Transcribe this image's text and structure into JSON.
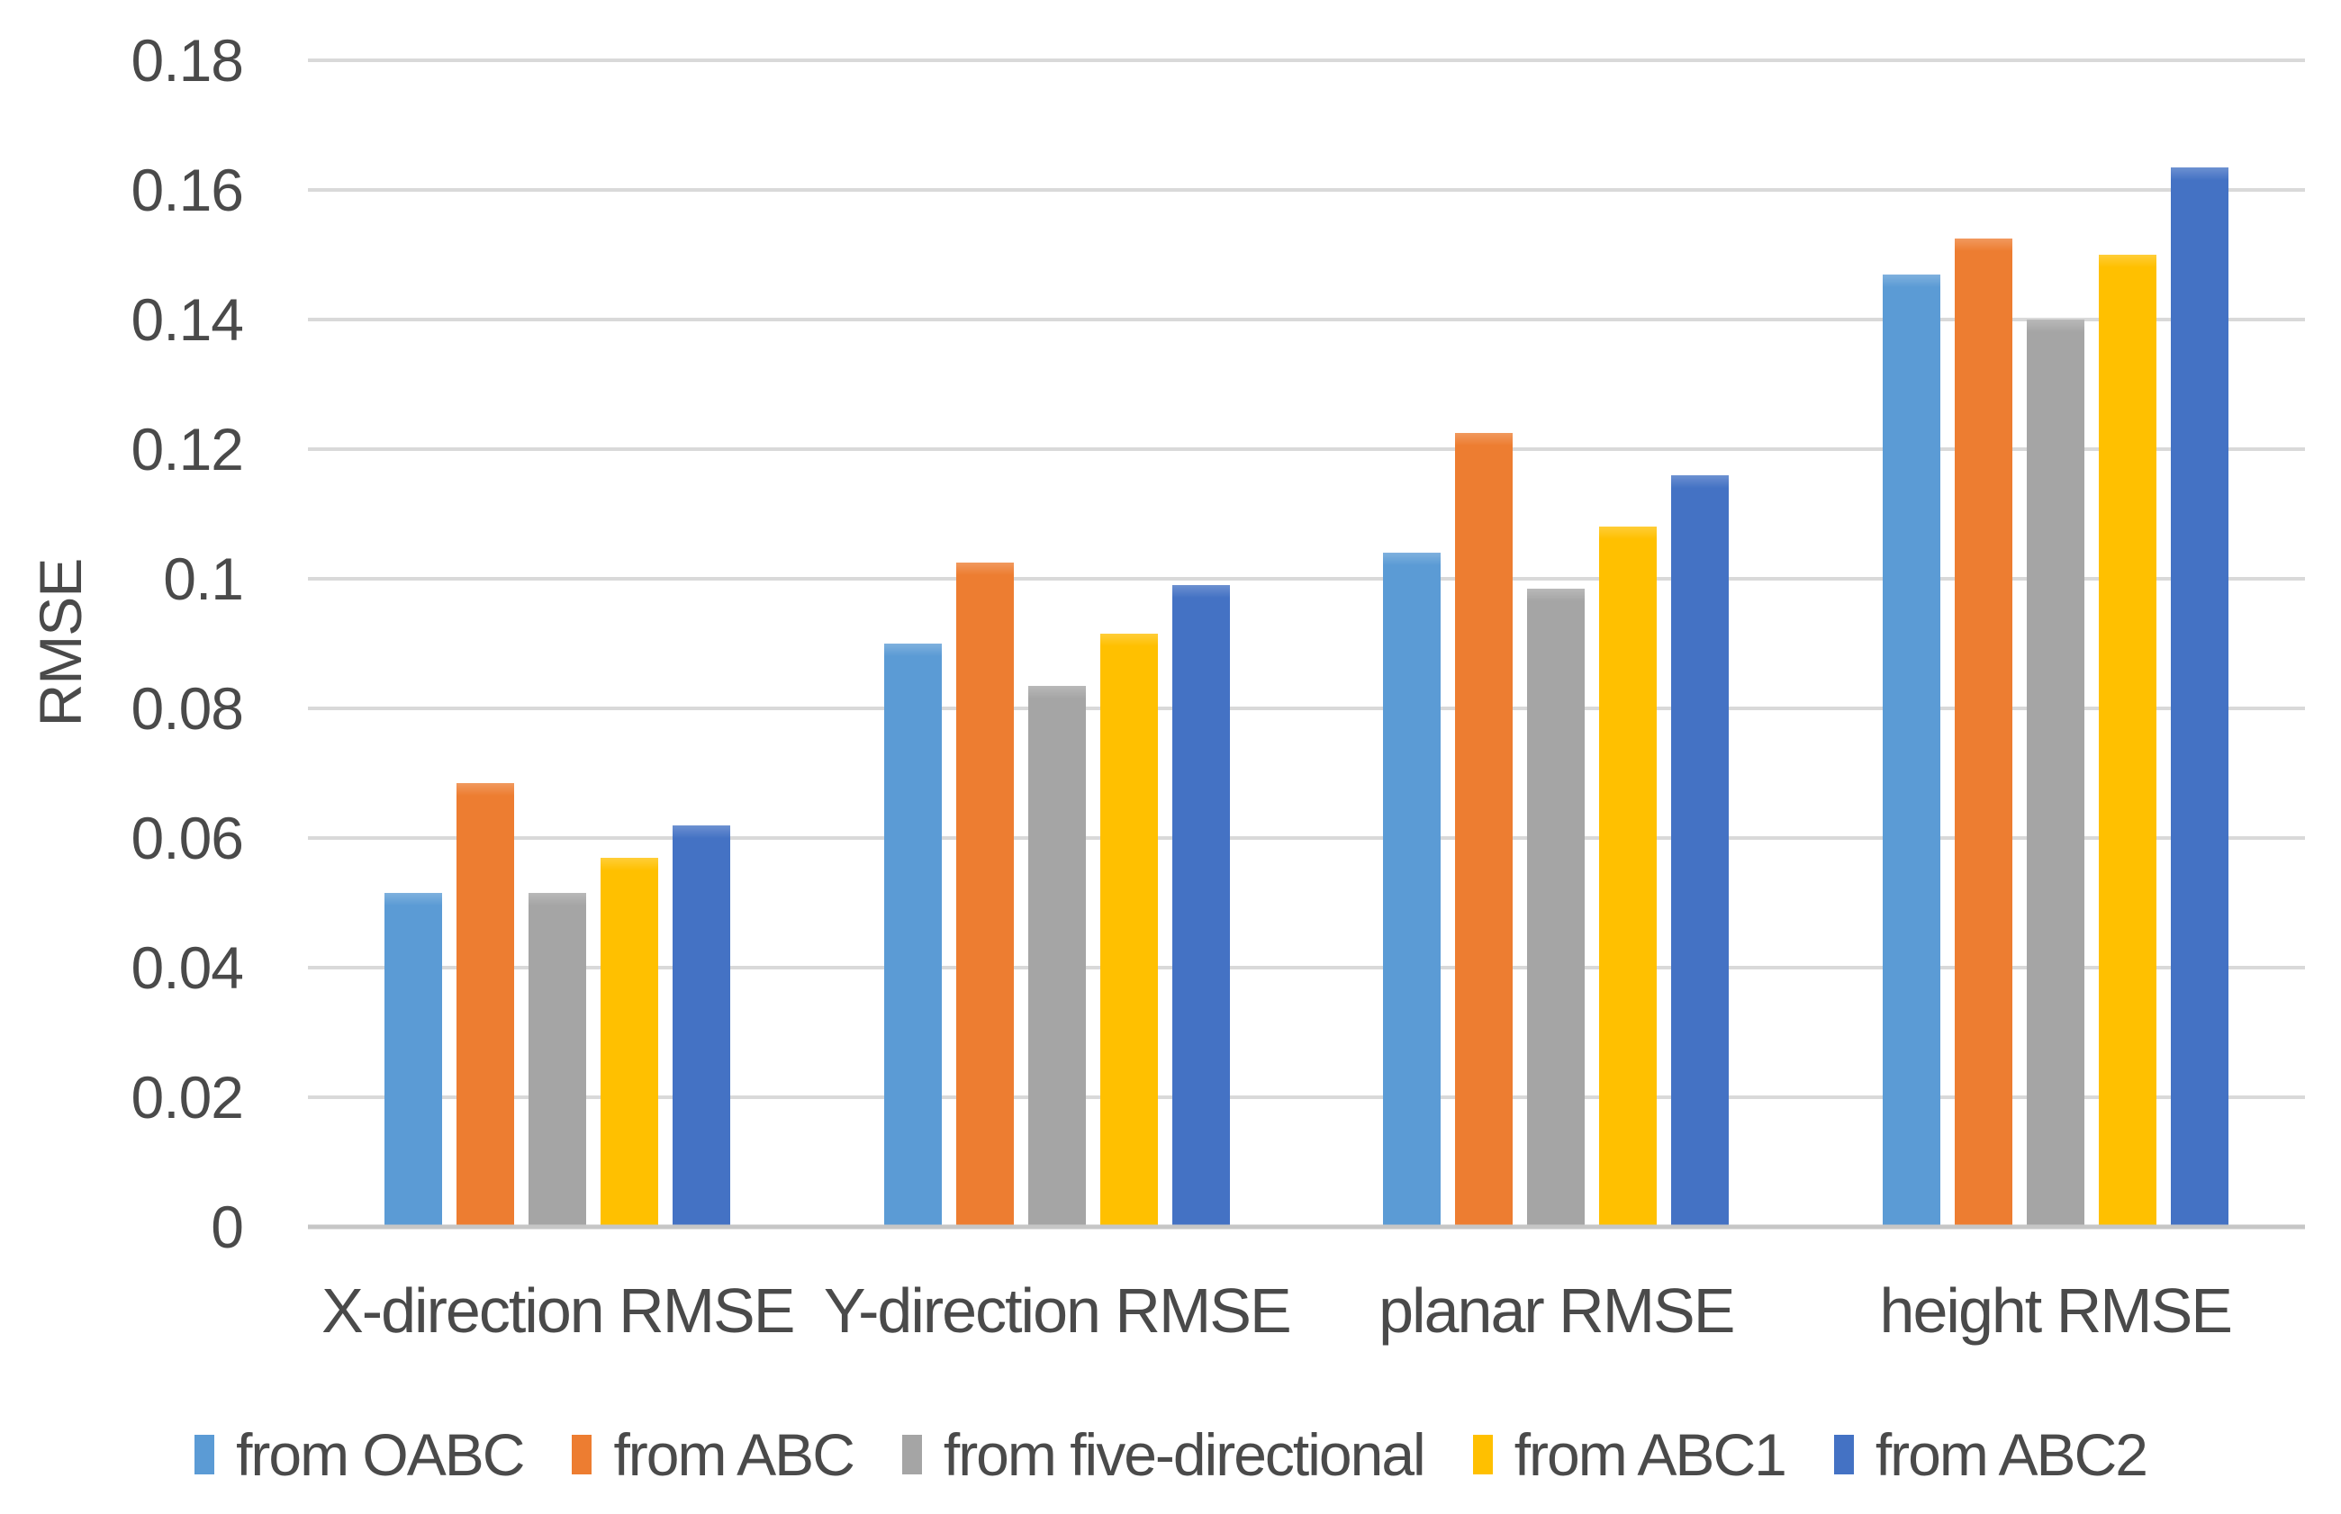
{
  "chart_data": {
    "type": "bar",
    "title": "",
    "xlabel": "",
    "ylabel": "RMSE",
    "ylim": [
      0,
      0.18
    ],
    "ytick_step": 0.02,
    "yticks": [
      "0.18",
      "0.16",
      "0.14",
      "0.12",
      "0.1",
      "0.08",
      "0.06",
      "0.04",
      "0.02",
      "0"
    ],
    "grid": "horizontal",
    "legend_position": "bottom",
    "categories": [
      "X-direction RMSE",
      "Y-direction RMSE",
      "planar RMSE",
      "height RMSE"
    ],
    "series": [
      {
        "name": "from OABC",
        "color": "#5B9BD5",
        "values": [
          0.0515,
          0.09,
          0.104,
          0.147
        ]
      },
      {
        "name": "from ABC",
        "color": "#ED7D31",
        "values": [
          0.0685,
          0.1025,
          0.1225,
          0.1525
        ]
      },
      {
        "name": "from five-directional",
        "color": "#A5A5A5",
        "values": [
          0.0515,
          0.0835,
          0.0985,
          0.14
        ]
      },
      {
        "name": "from ABC1",
        "color": "#FFC000",
        "values": [
          0.057,
          0.0915,
          0.108,
          0.15
        ]
      },
      {
        "name": "from ABC2",
        "color": "#4472C4",
        "values": [
          0.062,
          0.099,
          0.116,
          0.1635
        ]
      }
    ],
    "style_colors": {
      "gridline": "#d9d9d9",
      "axis_line": "#c6c6c6",
      "text": "#4a4a4a"
    }
  }
}
